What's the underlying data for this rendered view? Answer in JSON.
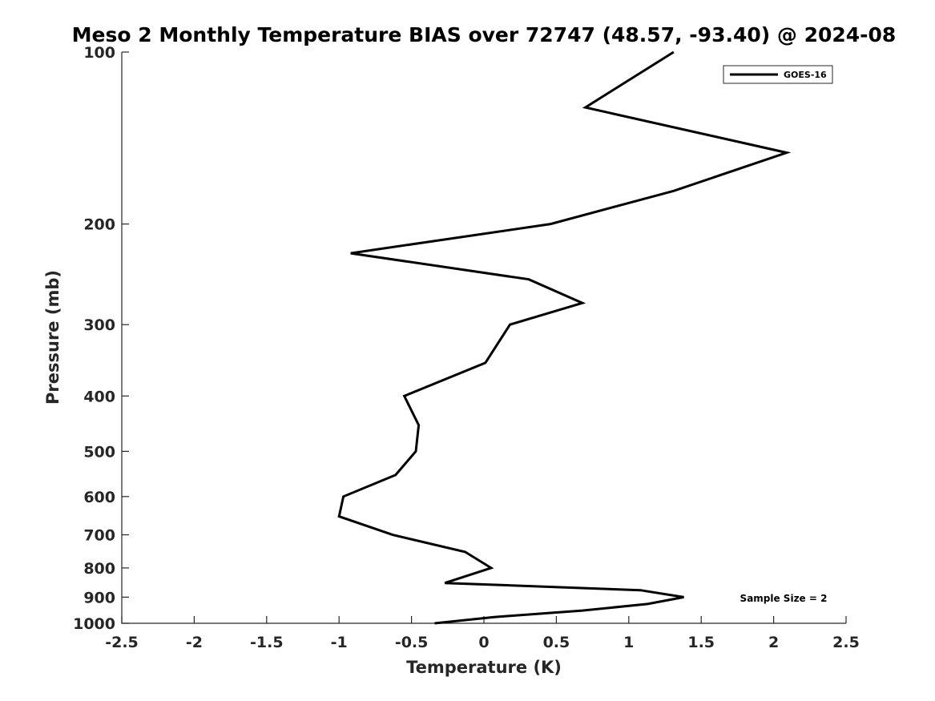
{
  "chart_data": {
    "type": "line",
    "title": "Meso 2 Monthly Temperature BIAS over 72747 (48.57, -93.40) @ 2024-08",
    "xlabel": "Temperature (K)",
    "ylabel": "Pressure (mb)",
    "xlim": [
      -2.5,
      2.5
    ],
    "ylim": [
      100,
      1000
    ],
    "y_scale": "log",
    "y_reversed": true,
    "grid": false,
    "legend_position": "top-right",
    "x_ticks": [
      -2.5,
      -2,
      -1.5,
      -1,
      -0.5,
      0,
      0.5,
      1,
      1.5,
      2,
      2.5
    ],
    "x_tick_labels": [
      "-2.5",
      "-2",
      "-1.5",
      "-1",
      "-0.5",
      "0",
      "0.5",
      "1",
      "1.5",
      "2",
      "2.5"
    ],
    "y_ticks": [
      100,
      200,
      300,
      400,
      500,
      600,
      700,
      800,
      900,
      1000
    ],
    "y_tick_labels": [
      "100",
      "200",
      "300",
      "400",
      "500",
      "600",
      "700",
      "800",
      "900",
      "1000"
    ],
    "series": [
      {
        "name": "GOES-16",
        "color": "#000000",
        "points": [
          {
            "x": 1.31,
            "y": 100
          },
          {
            "x": 0.7,
            "y": 125
          },
          {
            "x": 2.09,
            "y": 150
          },
          {
            "x": 1.31,
            "y": 175
          },
          {
            "x": 0.46,
            "y": 200
          },
          {
            "x": -0.92,
            "y": 225
          },
          {
            "x": 0.31,
            "y": 250
          },
          {
            "x": 0.68,
            "y": 275
          },
          {
            "x": 0.18,
            "y": 300
          },
          {
            "x": 0.01,
            "y": 350
          },
          {
            "x": -0.55,
            "y": 400
          },
          {
            "x": -0.45,
            "y": 450
          },
          {
            "x": -0.47,
            "y": 500
          },
          {
            "x": -0.61,
            "y": 550
          },
          {
            "x": -0.97,
            "y": 600
          },
          {
            "x": -1.0,
            "y": 650
          },
          {
            "x": -0.63,
            "y": 700
          },
          {
            "x": -0.13,
            "y": 750
          },
          {
            "x": 0.05,
            "y": 800
          },
          {
            "x": -0.27,
            "y": 850
          },
          {
            "x": 1.08,
            "y": 875
          },
          {
            "x": 1.38,
            "y": 900
          },
          {
            "x": 1.13,
            "y": 925
          },
          {
            "x": 0.68,
            "y": 950
          },
          {
            "x": 0.07,
            "y": 975
          },
          {
            "x": -0.34,
            "y": 1000
          }
        ]
      }
    ],
    "annotations": [
      {
        "text": "Sample Size = 2"
      }
    ]
  }
}
